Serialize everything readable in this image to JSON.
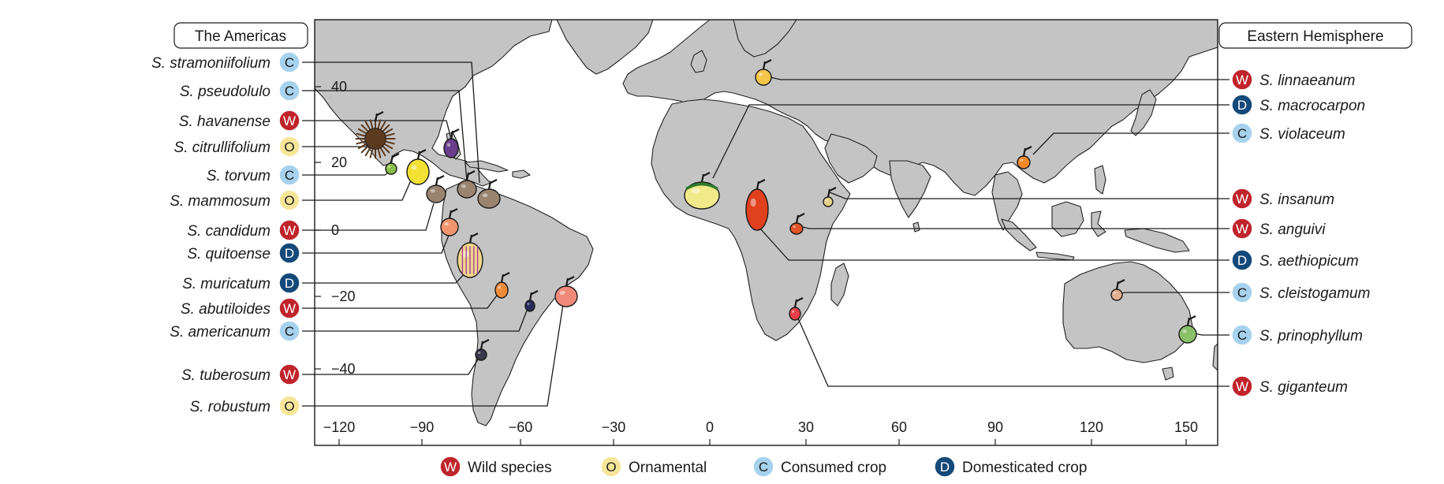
{
  "regions": {
    "americas": "The Americas",
    "eastern": "Eastern Hemisphere"
  },
  "legend": [
    {
      "key": "W",
      "label": "Wild species",
      "fill": "#c0242b",
      "text": "#ffffff"
    },
    {
      "key": "O",
      "label": "Ornamental",
      "fill": "#f7e69a",
      "text": "#1a1a1a"
    },
    {
      "key": "C",
      "label": "Consumed crop",
      "fill": "#a7d2ee",
      "text": "#1a1a1a"
    },
    {
      "key": "D",
      "label": "Domesticated crop",
      "fill": "#14497a",
      "text": "#ffffff"
    }
  ],
  "axes": {
    "x_ticks": [
      "−120",
      "−90",
      "−60",
      "−30",
      "0",
      "30",
      "60",
      "90",
      "120",
      "150"
    ],
    "y_ticks": [
      "40",
      "20",
      "0",
      "−20",
      "−40"
    ]
  },
  "species_left": [
    {
      "name": "S. stramoniifolium",
      "type": "C",
      "fruit_color": "#9a8470"
    },
    {
      "name": "S. pseudolulo",
      "type": "C",
      "fruit_color": "#9a8470"
    },
    {
      "name": "S. havanense",
      "type": "W",
      "fruit_color": "#6a3e8c"
    },
    {
      "name": "S. citrullifolium",
      "type": "O",
      "fruit_color": "#5b3a1e"
    },
    {
      "name": "S. torvum",
      "type": "C",
      "fruit_color": "#8bbf4a"
    },
    {
      "name": "S. mammosum",
      "type": "O",
      "fruit_color": "#f2e035"
    },
    {
      "name": "S. candidum",
      "type": "W",
      "fruit_color": "#9a8470"
    },
    {
      "name": "S. quitoense",
      "type": "D",
      "fruit_color": "#f0956e"
    },
    {
      "name": "S. muricatum",
      "type": "D",
      "fruit_color": "#f0d58c"
    },
    {
      "name": "S. abutiloides",
      "type": "W",
      "fruit_color": "#ee8b3a"
    },
    {
      "name": "S. americanum",
      "type": "C",
      "fruit_color": "#2a2a5a"
    },
    {
      "name": "S. tuberosum",
      "type": "W",
      "fruit_color": "#3a3a4a"
    },
    {
      "name": "S. robustum",
      "type": "O",
      "fruit_color": "#f08a7a"
    }
  ],
  "species_right": [
    {
      "name": "S. linnaeanum",
      "type": "W",
      "fruit_color": "#f4c64a"
    },
    {
      "name": "S. macrocarpon",
      "type": "D",
      "fruit_color": "#f2ea8a"
    },
    {
      "name": "S. violaceum",
      "type": "C",
      "fruit_color": "#f08a2a"
    },
    {
      "name": "S. insanum",
      "type": "W",
      "fruit_color": "#e8d28a"
    },
    {
      "name": "S. anguivi",
      "type": "W",
      "fruit_color": "#e0552a"
    },
    {
      "name": "S. aethiopicum",
      "type": "D",
      "fruit_color": "#e0401e"
    },
    {
      "name": "S. cleistogamum",
      "type": "C",
      "fruit_color": "#e0b090"
    },
    {
      "name": "S. prinophyllum",
      "type": "C",
      "fruit_color": "#8ac06a"
    },
    {
      "name": "S. giganteum",
      "type": "W",
      "fruit_color": "#e8404a"
    }
  ]
}
